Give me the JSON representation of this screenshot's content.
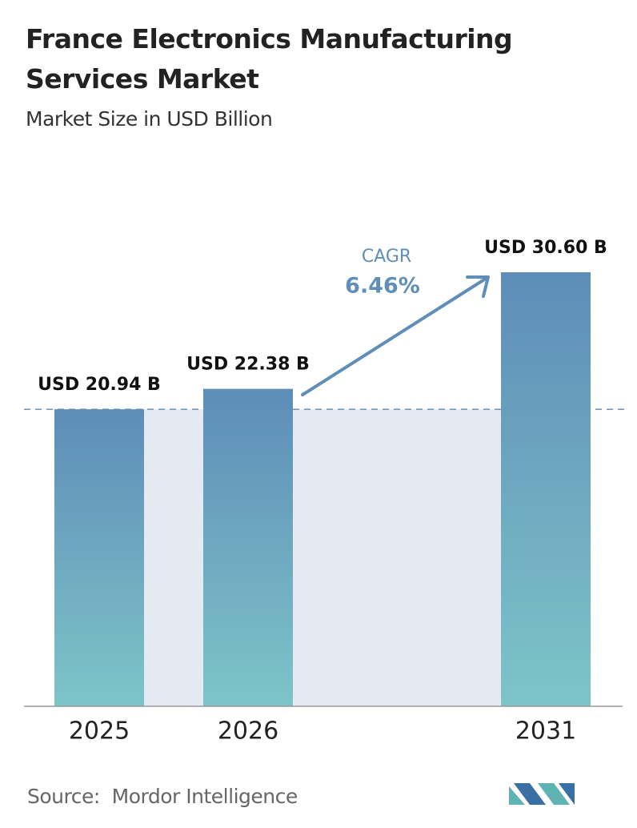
{
  "chart_data": {
    "type": "bar",
    "title": "France Electronics Manufacturing Services Market",
    "subtitle": "Market Size in USD Billion",
    "categories": [
      "2025",
      "2026",
      "2031"
    ],
    "values": [
      20.94,
      22.38,
      30.6
    ],
    "value_labels": [
      "USD 20.94 B",
      "USD 22.38 B",
      "USD 30.60 B"
    ],
    "color_top": "#5e8db8",
    "color_bottom": "#7dc4c8",
    "annotation": {
      "label": "CAGR",
      "value": "6.46%"
    },
    "source": "Source:  Mordor Intelligence"
  }
}
